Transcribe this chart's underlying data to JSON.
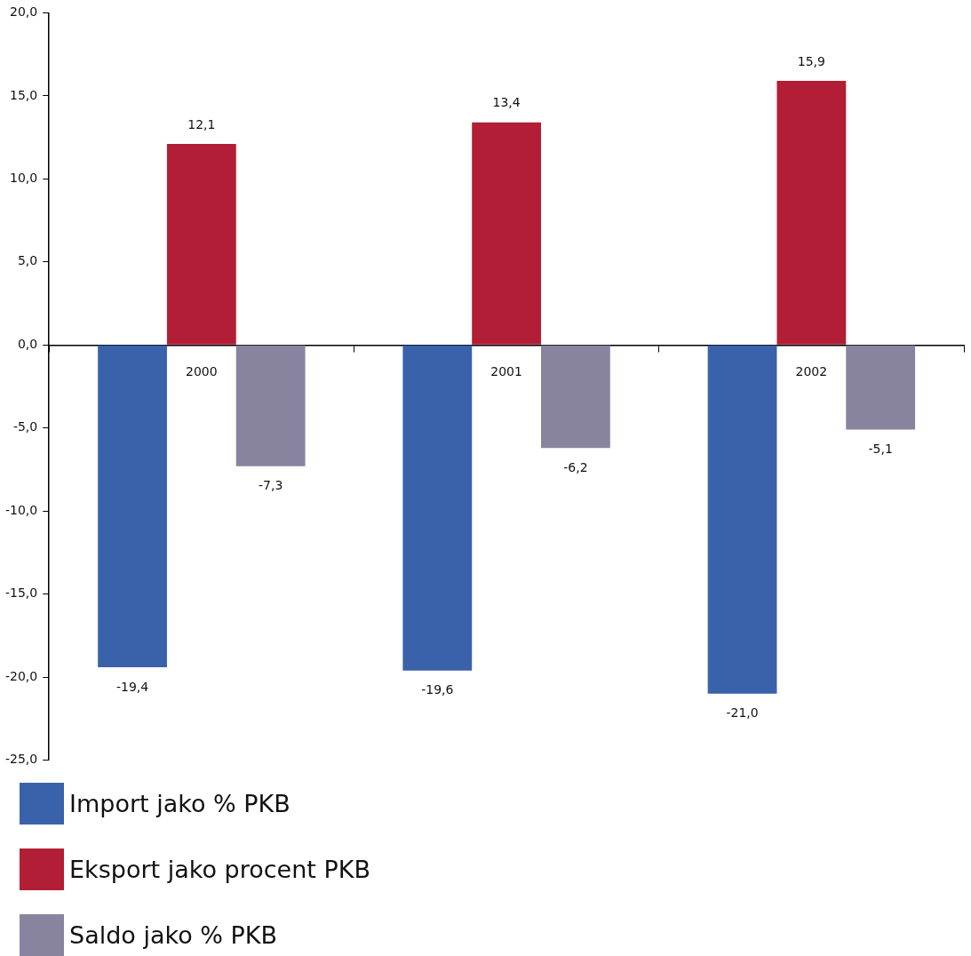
{
  "chart_data": {
    "type": "bar",
    "categories": [
      "2000",
      "2001",
      "2002"
    ],
    "series": [
      {
        "name": "Import jako % PKB",
        "color": "#3a62ab",
        "values": [
          -19.4,
          -19.6,
          -21.0
        ],
        "value_labels": [
          "-19,4",
          "-19,6",
          "-21,0"
        ]
      },
      {
        "name": "Eksport jako procent PKB",
        "color": "#b21e35",
        "values": [
          12.1,
          13.4,
          15.9
        ],
        "value_labels": [
          "12,1",
          "13,4",
          "15,9"
        ]
      },
      {
        "name": "Saldo jako % PKB",
        "color": "#8884a0",
        "values": [
          -7.3,
          -6.2,
          -5.1
        ],
        "value_labels": [
          "-7,3",
          "-6,2",
          "-5,1"
        ]
      }
    ],
    "ylim": [
      -25,
      20
    ],
    "yticks": [
      {
        "value": -25,
        "label": "-25,0"
      },
      {
        "value": -20,
        "label": "-20,0"
      },
      {
        "value": -15,
        "label": "-15,0"
      },
      {
        "value": -10,
        "label": "-10,0"
      },
      {
        "value": -5,
        "label": "-5,0"
      },
      {
        "value": 0,
        "label": "0,0"
      },
      {
        "value": 5,
        "label": "5,0"
      },
      {
        "value": 10,
        "label": "10,0"
      },
      {
        "value": 15,
        "label": "15,0"
      },
      {
        "value": 20,
        "label": "20,0"
      }
    ],
    "grid": false,
    "legend": "bottom"
  }
}
